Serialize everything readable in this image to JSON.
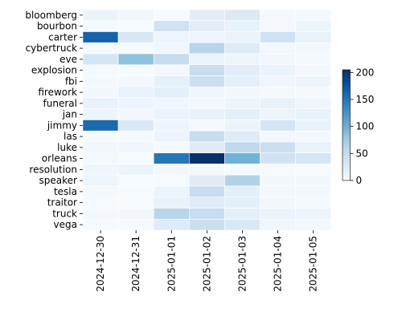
{
  "chart_data": {
    "type": "heatmap",
    "title": "",
    "xlabel": "",
    "ylabel": "",
    "x": [
      "2024-12-30",
      "2024-12-31",
      "2025-01-01",
      "2025-01-02",
      "2025-01-03",
      "2025-01-04",
      "2025-01-05"
    ],
    "y": [
      "bloomberg",
      "bourbon",
      "carter",
      "cybertruck",
      "eve",
      "explosion",
      "fbi",
      "firework",
      "funeral",
      "jan",
      "jimmy",
      "las",
      "luke",
      "orleans",
      "resolution",
      "speaker",
      "tesla",
      "traitor",
      "truck",
      "vega"
    ],
    "values": [
      [
        12,
        8,
        2,
        22,
        28,
        3,
        4
      ],
      [
        2,
        2,
        40,
        22,
        15,
        4,
        10
      ],
      [
        165,
        30,
        10,
        10,
        12,
        42,
        15
      ],
      [
        2,
        2,
        8,
        60,
        25,
        5,
        5
      ],
      [
        35,
        85,
        50,
        12,
        10,
        6,
        4
      ],
      [
        3,
        2,
        5,
        48,
        22,
        12,
        5
      ],
      [
        3,
        5,
        18,
        45,
        20,
        8,
        10
      ],
      [
        5,
        15,
        20,
        8,
        5,
        3,
        3
      ],
      [
        15,
        10,
        8,
        5,
        10,
        15,
        8
      ],
      [
        10,
        5,
        12,
        15,
        20,
        10,
        15
      ],
      [
        160,
        30,
        10,
        4,
        12,
        35,
        15
      ],
      [
        2,
        2,
        10,
        50,
        25,
        5,
        5
      ],
      [
        6,
        8,
        4,
        25,
        55,
        45,
        15
      ],
      [
        3,
        2,
        150,
        205,
        100,
        40,
        35
      ],
      [
        8,
        12,
        5,
        3,
        2,
        2,
        2
      ],
      [
        10,
        2,
        2,
        25,
        65,
        5,
        5
      ],
      [
        3,
        2,
        12,
        50,
        20,
        5,
        5
      ],
      [
        2,
        2,
        15,
        25,
        20,
        6,
        4
      ],
      [
        5,
        6,
        60,
        48,
        20,
        12,
        10
      ],
      [
        2,
        2,
        25,
        45,
        30,
        8,
        5
      ]
    ],
    "colormap": "Blues",
    "colorbar": {
      "vmin": 0,
      "vmax": 205,
      "ticks": [
        0,
        50,
        100,
        150,
        200
      ]
    },
    "grid": false,
    "legend": "colorbar-right"
  }
}
